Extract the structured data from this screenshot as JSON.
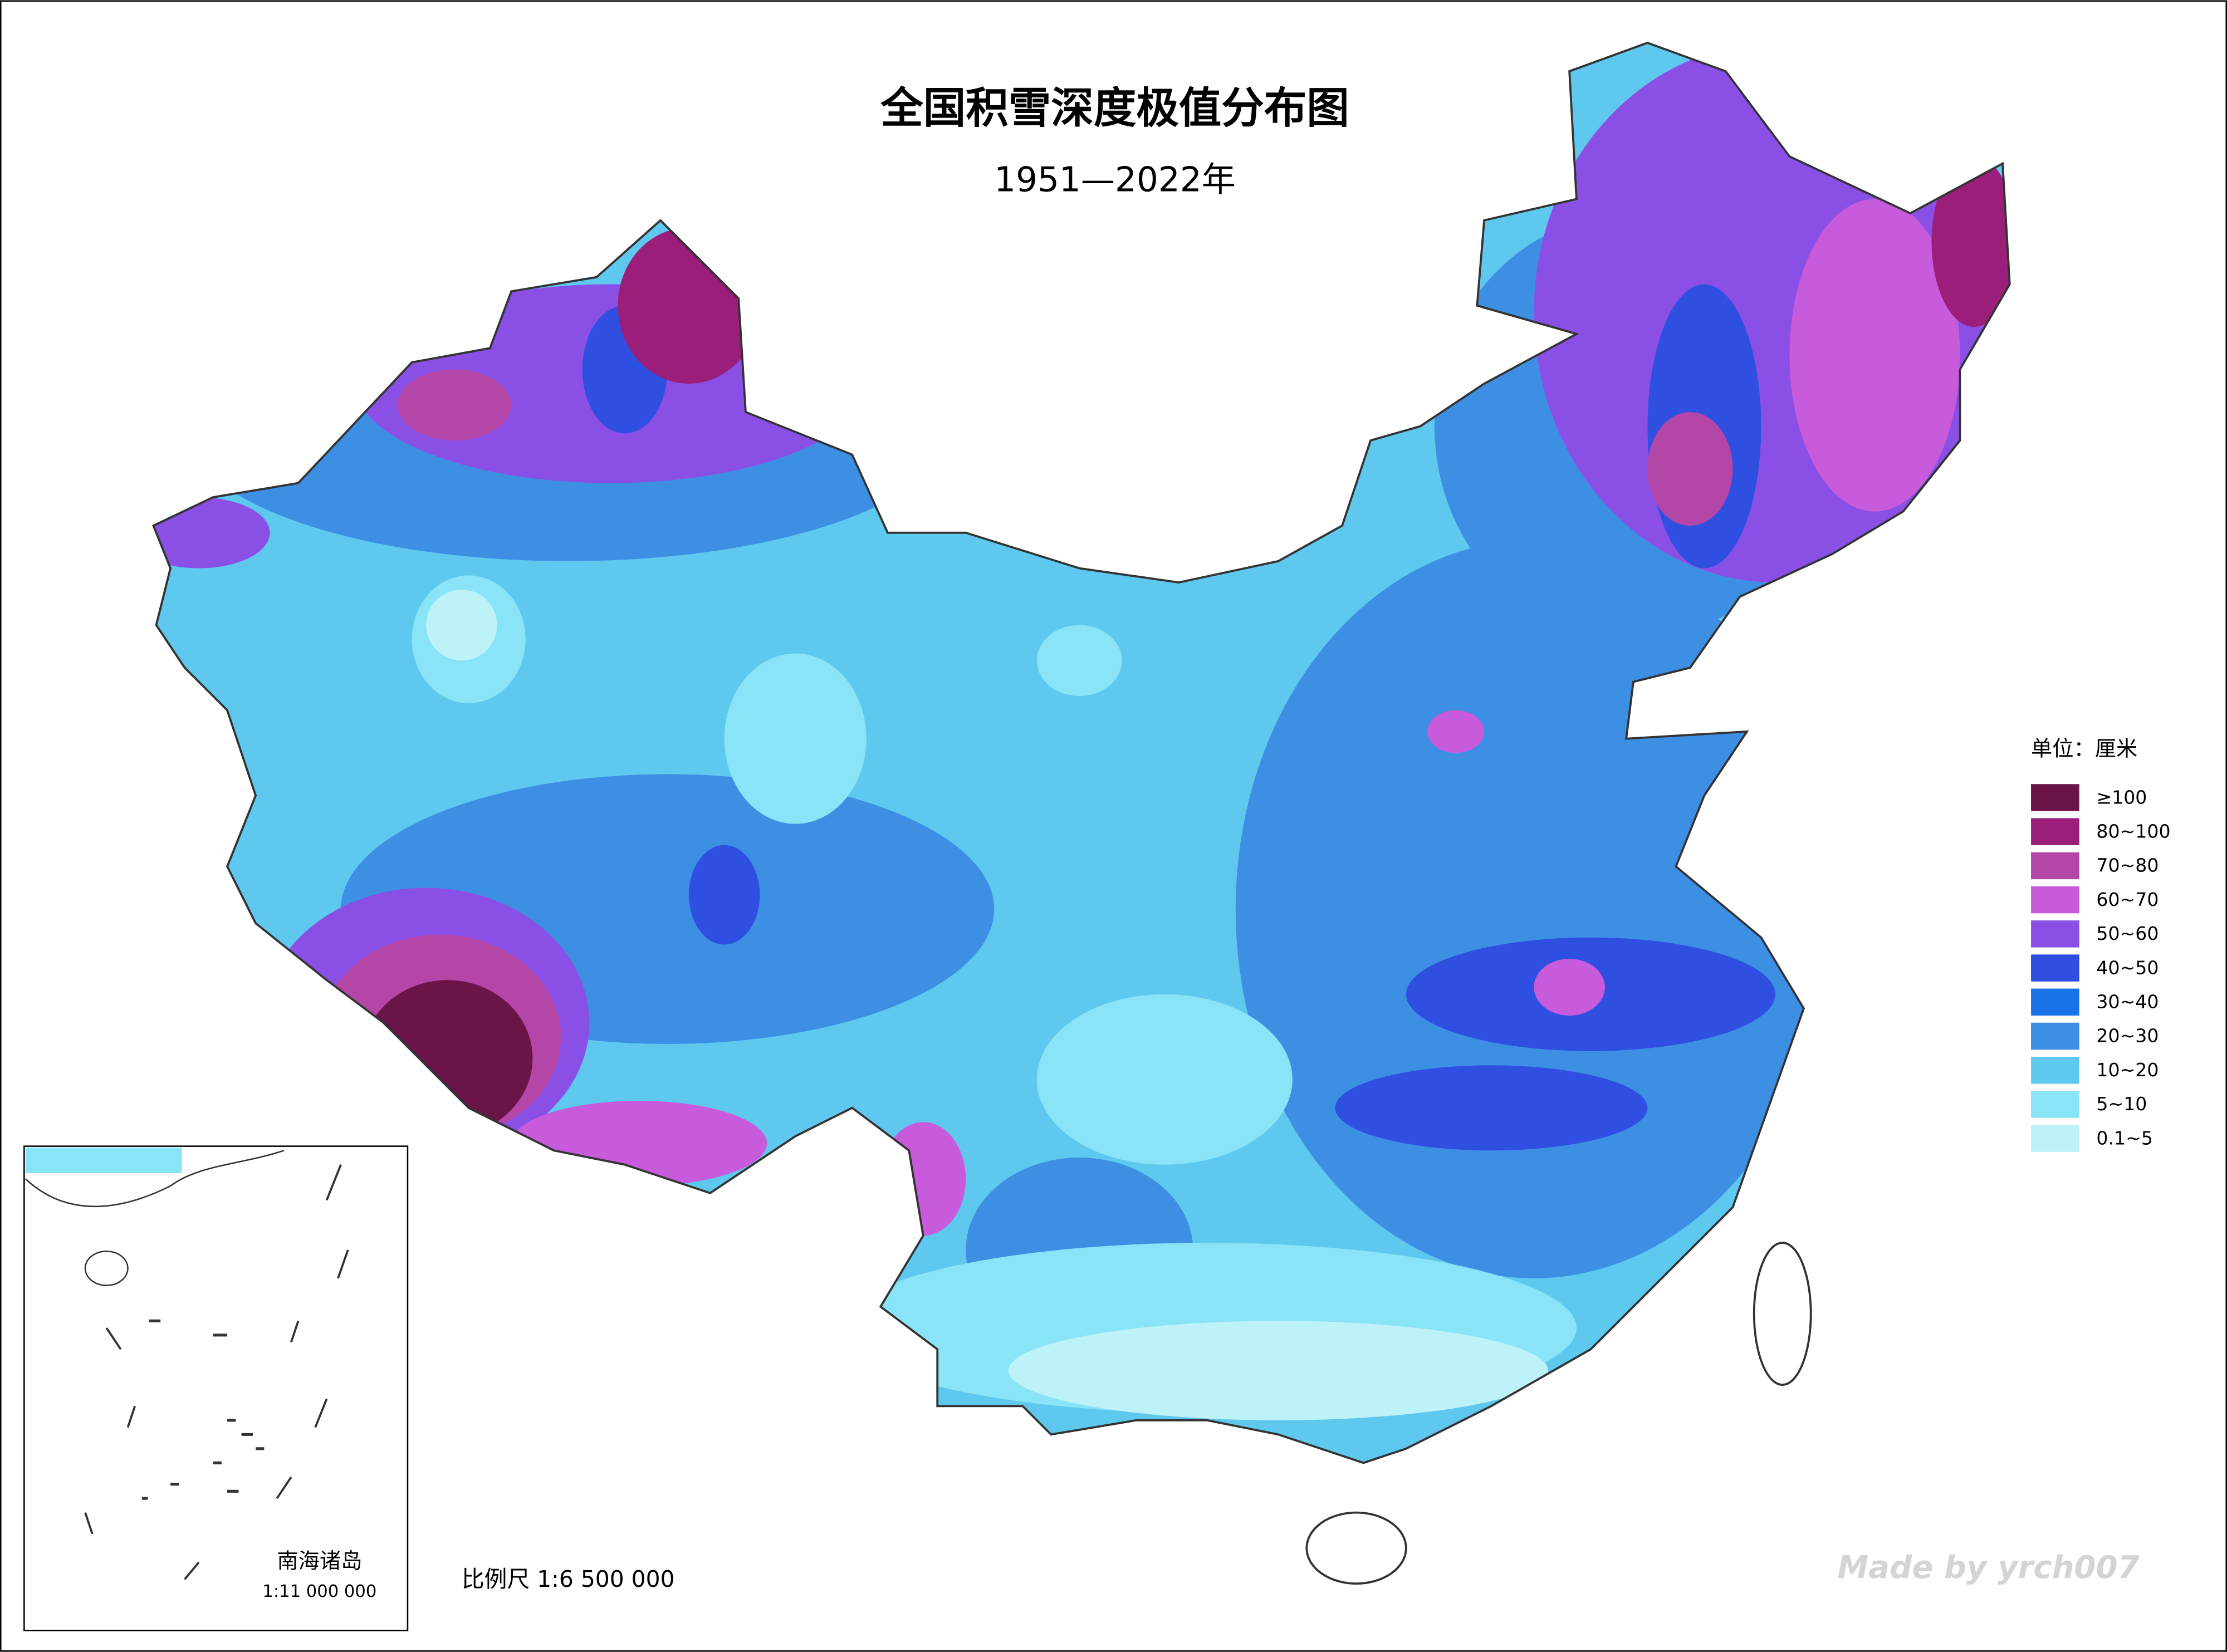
{
  "title": "全国积雪深度极值分布图",
  "subtitle": "1951—2022年",
  "legend": {
    "title": "单位：厘米",
    "items": [
      {
        "label": "≥100",
        "color": "#6b1447"
      },
      {
        "label": "80~100",
        "color": "#9b1f7a"
      },
      {
        "label": "70~80",
        "color": "#b446a8"
      },
      {
        "label": "60~70",
        "color": "#c85bdc"
      },
      {
        "label": "50~60",
        "color": "#8a50e6"
      },
      {
        "label": "40~50",
        "color": "#2f4fe0"
      },
      {
        "label": "30~40",
        "color": "#1a73e6"
      },
      {
        "label": "20~30",
        "color": "#3d8fe4"
      },
      {
        "label": "10~20",
        "color": "#5ec8ee"
      },
      {
        "label": "5~10",
        "color": "#88e4f6"
      },
      {
        "label": "0.1~5",
        "color": "#bdf2f8"
      }
    ]
  },
  "inset": {
    "title": "南海诸岛",
    "scale": "1:11 000 000"
  },
  "scale": "比例尺  1:6 500 000",
  "watermark": "Made by yrch007"
}
